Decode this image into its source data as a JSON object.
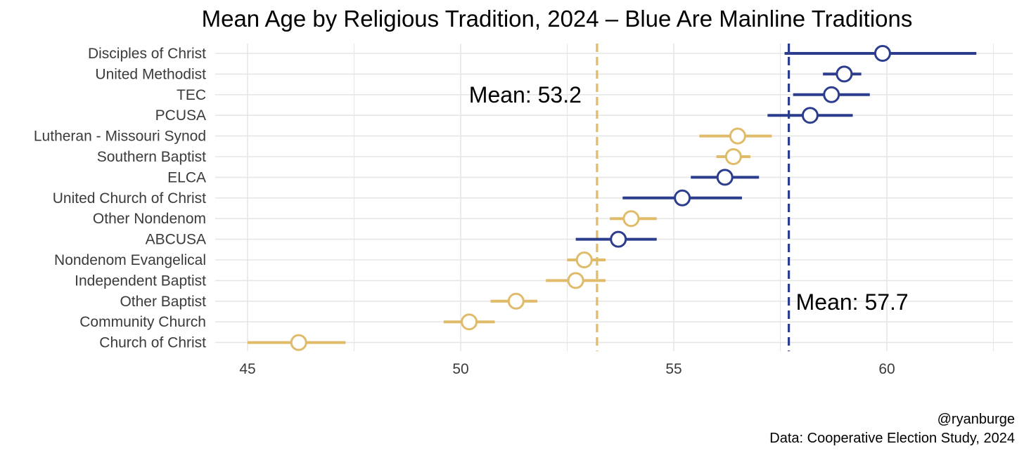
{
  "chart_data": {
    "type": "scatter",
    "title": "Mean Age by Religious Tradition, 2024 – Blue Are Mainline Traditions",
    "xlabel": "",
    "ylabel": "",
    "xlim": [
      44.2,
      62.6
    ],
    "x_ticks": [
      "45",
      "50",
      "55",
      "60"
    ],
    "x_tick_values": [
      45,
      50,
      55,
      60
    ],
    "grid": true,
    "colors": {
      "mainline": "#2b3d8c",
      "other": "#dfbb6a",
      "grid": "#e6e6e6"
    },
    "categories": [
      "Disciples of Christ",
      "United Methodist",
      "TEC",
      "PCUSA",
      "Lutheran - Missouri Synod",
      "Southern Baptist",
      "ELCA",
      "United Church of Christ",
      "Other Nondenom",
      "ABCUSA",
      "Nondenom Evangelical",
      "Independent Baptist",
      "Other Baptist",
      "Community Church",
      "Church of Christ"
    ],
    "points": [
      {
        "label": "Disciples of Christ",
        "mean": 59.9,
        "low": 57.6,
        "high": 62.1,
        "group": "mainline"
      },
      {
        "label": "United Methodist",
        "mean": 59.0,
        "low": 58.5,
        "high": 59.4,
        "group": "mainline"
      },
      {
        "label": "TEC",
        "mean": 58.7,
        "low": 57.8,
        "high": 59.6,
        "group": "mainline"
      },
      {
        "label": "PCUSA",
        "mean": 58.2,
        "low": 57.2,
        "high": 59.2,
        "group": "mainline"
      },
      {
        "label": "Lutheran - Missouri Synod",
        "mean": 56.5,
        "low": 55.6,
        "high": 57.3,
        "group": "other"
      },
      {
        "label": "Southern Baptist",
        "mean": 56.4,
        "low": 56.0,
        "high": 56.8,
        "group": "other"
      },
      {
        "label": "ELCA",
        "mean": 56.2,
        "low": 55.4,
        "high": 57.0,
        "group": "mainline"
      },
      {
        "label": "United Church of Christ",
        "mean": 55.2,
        "low": 53.8,
        "high": 56.6,
        "group": "mainline"
      },
      {
        "label": "Other Nondenom",
        "mean": 54.0,
        "low": 53.5,
        "high": 54.6,
        "group": "other"
      },
      {
        "label": "ABCUSA",
        "mean": 53.7,
        "low": 52.7,
        "high": 54.6,
        "group": "mainline"
      },
      {
        "label": "Nondenom Evangelical",
        "mean": 52.9,
        "low": 52.5,
        "high": 53.4,
        "group": "other"
      },
      {
        "label": "Independent Baptist",
        "mean": 52.7,
        "low": 52.0,
        "high": 53.4,
        "group": "other"
      },
      {
        "label": "Other Baptist",
        "mean": 51.3,
        "low": 50.7,
        "high": 51.8,
        "group": "other"
      },
      {
        "label": "Community Church",
        "mean": 50.2,
        "low": 49.6,
        "high": 50.8,
        "group": "other"
      },
      {
        "label": "Church of Christ",
        "mean": 46.2,
        "low": 45.0,
        "high": 47.3,
        "group": "other"
      }
    ],
    "reference_lines": [
      {
        "value": 53.2,
        "group": "other",
        "label": "Mean: 53.2"
      },
      {
        "value": 57.7,
        "group": "mainline",
        "label": "Mean: 57.7"
      }
    ]
  },
  "caption": {
    "author": "@ryanburge",
    "source": "Data: Cooperative Election Study, 2024"
  }
}
